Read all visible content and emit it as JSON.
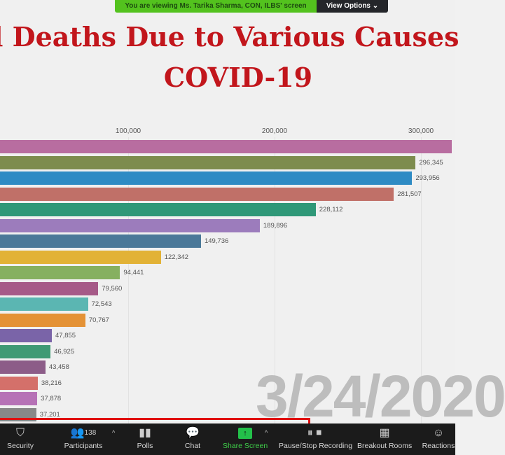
{
  "banner": {
    "viewing_text": "You are viewing Ms. Tarika Sharma, CON, ILBS' screen",
    "view_options": "View Options ⌄"
  },
  "title": {
    "line1": "l Deaths Due to Various Causes",
    "line2": "COVID-19"
  },
  "date_label": "3/24/2020",
  "chart_data": {
    "type": "bar",
    "orientation": "horizontal",
    "x_ticks": [
      100000,
      200000,
      300000
    ],
    "x_tick_labels": [
      "100,000",
      "200,000",
      "300,000"
    ],
    "grid": true,
    "values": [
      321000,
      296345,
      293956,
      281507,
      228112,
      189896,
      149736,
      122342,
      94441,
      79560,
      72543,
      70767,
      47855,
      46925,
      43458,
      38216,
      37878,
      37201
    ],
    "value_labels": [
      "",
      "296,345",
      "293,956",
      "281,507",
      "228,112",
      "189,896",
      "149,736",
      "122,342",
      "94,441",
      "79,560",
      "72,543",
      "70,767",
      "47,855",
      "46,925",
      "43,458",
      "38,216",
      "37,878",
      "37,201"
    ],
    "colors": [
      "#b86da0",
      "#7d8c4e",
      "#2e8bc4",
      "#c07068",
      "#2f9878",
      "#9c7cbc",
      "#4a7898",
      "#e2b236",
      "#86b060",
      "#a65a88",
      "#5bb6b2",
      "#e49236",
      "#7a64a8",
      "#3f9a74",
      "#8c5c88",
      "#d4706a",
      "#b672b6",
      "#888888"
    ]
  },
  "toolbar": {
    "security": "Security",
    "participants": "Participants",
    "participant_count": "138",
    "polls": "Polls",
    "chat": "Chat",
    "share_screen": "Share Screen",
    "recording": "Pause/Stop Recording",
    "breakout": "Breakout Rooms",
    "reactions": "Reactions"
  }
}
